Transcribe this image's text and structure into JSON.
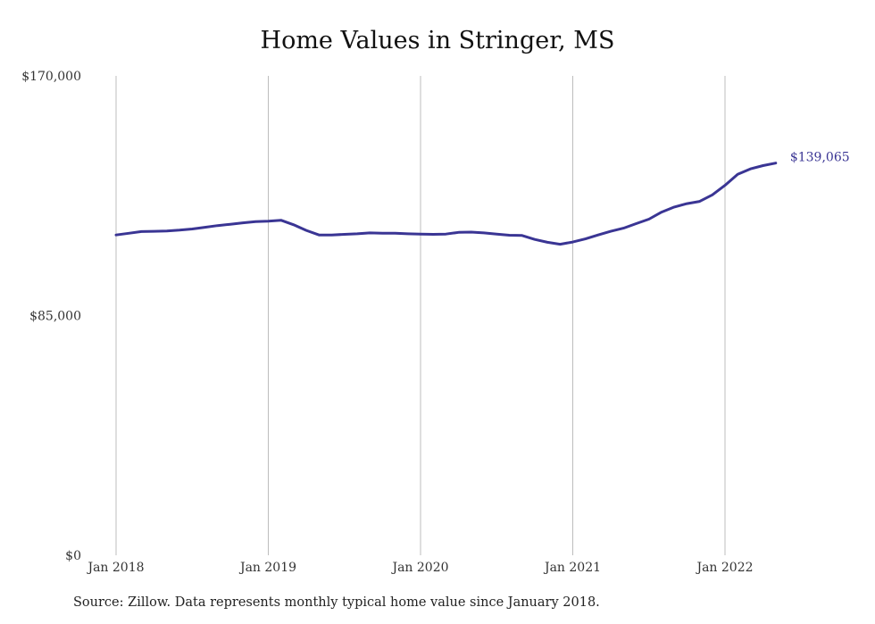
{
  "chart_data": {
    "type": "line",
    "title": "Home Values in Stringer, MS",
    "xlabel": "",
    "ylabel": "",
    "ylim": [
      0,
      170000
    ],
    "y_ticks": [
      {
        "value": 0,
        "label": "$0"
      },
      {
        "value": 85000,
        "label": "$85,000"
      },
      {
        "value": 170000,
        "label": "$170,000"
      }
    ],
    "x_ticks": [
      {
        "value": "2018-01",
        "label": "Jan 2018"
      },
      {
        "value": "2019-01",
        "label": "Jan 2019"
      },
      {
        "value": "2020-01",
        "label": "Jan 2020"
      },
      {
        "value": "2021-01",
        "label": "Jan 2021"
      },
      {
        "value": "2022-01",
        "label": "Jan 2022"
      }
    ],
    "grid": "vertical",
    "line_color": "#3a3594",
    "end_label": "$139,065",
    "series": [
      {
        "x": [
          "2018-01",
          "2018-02",
          "2018-03",
          "2018-04",
          "2018-05",
          "2018-06",
          "2018-07",
          "2018-08",
          "2018-09",
          "2018-10",
          "2018-11",
          "2018-12",
          "2019-01",
          "2019-02",
          "2019-03",
          "2019-04",
          "2019-05",
          "2019-06",
          "2019-07",
          "2019-08",
          "2019-09",
          "2019-10",
          "2019-11",
          "2019-12",
          "2020-01",
          "2020-02",
          "2020-03",
          "2020-04",
          "2020-05",
          "2020-06",
          "2020-07",
          "2020-08",
          "2020-09",
          "2020-10",
          "2020-11",
          "2020-12",
          "2021-01",
          "2021-02",
          "2021-03",
          "2021-04",
          "2021-05",
          "2021-06",
          "2021-07",
          "2021-08",
          "2021-09",
          "2021-10",
          "2021-11",
          "2021-12",
          "2022-01",
          "2022-02",
          "2022-03",
          "2022-04",
          "2022-05"
        ],
        "values": [
          113600,
          114200,
          114800,
          114900,
          115000,
          115300,
          115700,
          116300,
          116900,
          117400,
          117900,
          118300,
          118500,
          118800,
          117200,
          115200,
          113600,
          113600,
          113800,
          114000,
          114300,
          114200,
          114200,
          114000,
          113900,
          113800,
          113900,
          114500,
          114600,
          114300,
          113900,
          113500,
          113400,
          112000,
          111000,
          110300,
          111100,
          112200,
          113600,
          114900,
          116000,
          117600,
          119200,
          121700,
          123500,
          124700,
          125500,
          127800,
          131200,
          135100,
          137000,
          138200,
          139065
        ]
      }
    ]
  },
  "footer": {
    "source": "Source: Zillow. Data represents monthly typical home value since January 2018."
  }
}
